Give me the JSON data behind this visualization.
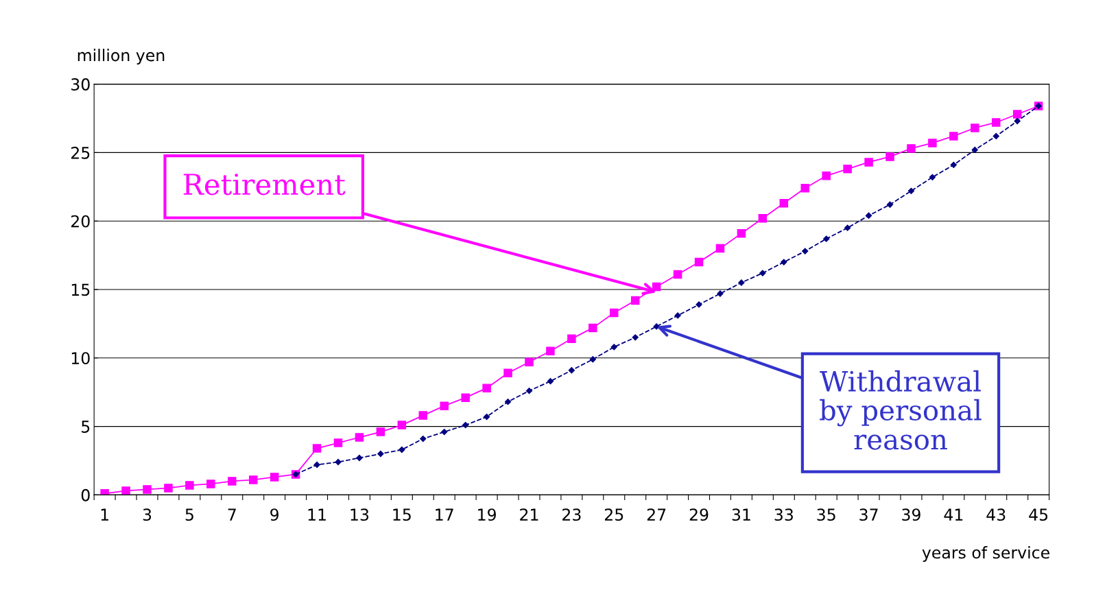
{
  "chart_data": {
    "type": "line",
    "ylabel": "million yen",
    "xlabel": "years of service",
    "categories": [
      "1",
      null,
      "3",
      null,
      "5",
      null,
      "7",
      null,
      "9",
      null,
      "11",
      null,
      "13",
      null,
      "15",
      null,
      "17",
      null,
      "19",
      null,
      "21",
      null,
      "23",
      null,
      "25",
      null,
      "27",
      null,
      "29",
      null,
      "31",
      null,
      "33",
      null,
      "35",
      null,
      "37",
      null,
      "39",
      null,
      "41",
      null,
      "43",
      null,
      "45"
    ],
    "series": [
      {
        "color": "#ff00ff",
        "marker": "square",
        "line_style": "solid",
        "values": [
          0.1,
          0.3,
          0.4,
          0.5,
          0.7,
          0.8,
          1.0,
          1.1,
          1.3,
          1.5,
          3.4,
          3.8,
          4.2,
          4.6,
          5.1,
          5.8,
          6.5,
          7.1,
          7.8,
          8.9,
          9.7,
          10.5,
          11.4,
          12.2,
          13.3,
          14.2,
          15.2,
          16.1,
          17.0,
          18.0,
          19.1,
          20.2,
          21.3,
          22.4,
          23.3,
          23.8,
          24.3,
          24.7,
          25.3,
          25.7,
          26.2,
          26.8,
          27.2,
          27.8,
          28.4
        ]
      },
      {
        "color": "#000080",
        "marker": "diamond",
        "line_style": "dashed",
        "values": [
          null,
          null,
          null,
          null,
          null,
          null,
          null,
          null,
          null,
          1.5,
          2.2,
          2.4,
          2.7,
          3.0,
          3.3,
          4.1,
          4.6,
          5.1,
          5.7,
          6.8,
          7.6,
          8.3,
          9.1,
          9.9,
          10.8,
          11.5,
          12.3,
          13.1,
          13.9,
          14.7,
          15.5,
          16.2,
          17.0,
          17.8,
          18.7,
          19.5,
          20.4,
          21.2,
          22.2,
          23.2,
          24.1,
          25.2,
          26.2,
          27.3,
          28.4
        ]
      }
    ],
    "ylim": [
      0,
      30
    ],
    "yticks": [
      0,
      5,
      10,
      15,
      20,
      25,
      30
    ],
    "grid": "y",
    "legend": false,
    "annotations": [
      {
        "text": "Retirement",
        "x": "27",
        "y": 14.8
      },
      {
        "text": "Withdrawal\nby personal\nreason",
        "x": "27",
        "y": 12.3
      }
    ]
  }
}
